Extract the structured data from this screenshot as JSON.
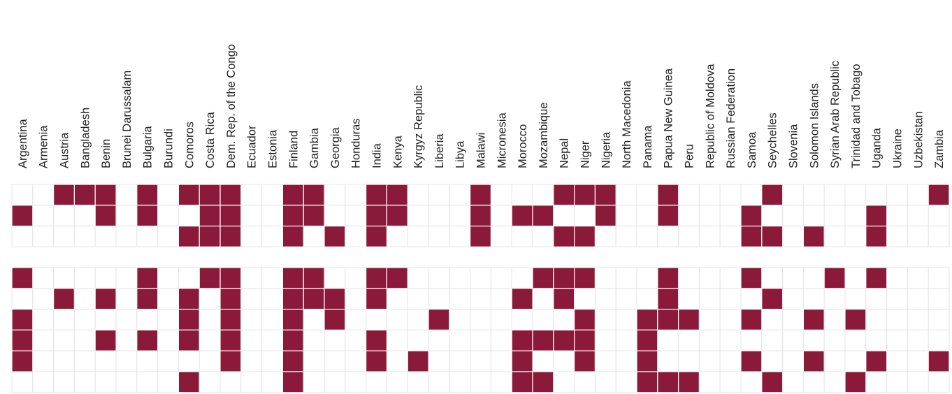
{
  "chart_data": {
    "type": "heatmap",
    "title": "",
    "xlabel": "",
    "ylabel": "",
    "columns": [
      "Argentina",
      "Armenia",
      "Austria",
      "Bangladesh",
      "Benin",
      "Brunei Darussalam",
      "Bulgaria",
      "Burundi",
      "Comoros",
      "Costa Rica",
      "Dem. Rep. of the Congo",
      "Ecuador",
      "Estonia",
      "Finland",
      "Gambia",
      "Georgia",
      "Honduras",
      "India",
      "Kenya",
      "Kyrgyz Republic",
      "Liberia",
      "Libya",
      "Malawi",
      "Micronesia",
      "Morocco",
      "Mozambique",
      "Nepal",
      "Niger",
      "Nigeria",
      "North Macedonia",
      "Panama",
      "Papua New Guinea",
      "Peru",
      "Republic of Moldova",
      "Russian Federation",
      "Samoa",
      "Seychelles",
      "Slovenia",
      "Solomon Islands",
      "Syrian Arab Republic",
      "Trinidad and Tobago",
      "Uganda",
      "Ukraine",
      "Uzbekistan",
      "Zambia"
    ],
    "groups": [
      {
        "rows": [
          [
            0,
            0,
            1,
            1,
            1,
            0,
            1,
            0,
            1,
            1,
            1,
            0,
            0,
            1,
            1,
            0,
            0,
            1,
            1,
            0,
            0,
            0,
            1,
            0,
            0,
            0,
            1,
            1,
            1,
            0,
            0,
            1,
            0,
            0,
            0,
            0,
            1,
            0,
            0,
            0,
            0,
            0,
            0,
            0,
            1
          ],
          [
            1,
            0,
            0,
            0,
            1,
            0,
            1,
            0,
            0,
            1,
            1,
            0,
            0,
            1,
            1,
            0,
            0,
            1,
            1,
            0,
            0,
            0,
            1,
            0,
            1,
            1,
            0,
            0,
            1,
            0,
            0,
            1,
            0,
            0,
            0,
            1,
            0,
            0,
            0,
            0,
            0,
            1,
            0,
            0,
            0
          ],
          [
            0,
            0,
            0,
            0,
            0,
            0,
            0,
            0,
            1,
            1,
            1,
            0,
            0,
            1,
            0,
            1,
            0,
            1,
            0,
            0,
            0,
            0,
            1,
            0,
            0,
            0,
            1,
            1,
            0,
            0,
            0,
            0,
            0,
            0,
            0,
            1,
            1,
            0,
            1,
            0,
            0,
            1,
            0,
            0,
            0
          ]
        ]
      },
      {
        "rows": [
          [
            1,
            0,
            0,
            0,
            0,
            0,
            1,
            0,
            0,
            1,
            1,
            0,
            0,
            1,
            1,
            0,
            0,
            1,
            1,
            0,
            0,
            0,
            0,
            0,
            0,
            1,
            1,
            1,
            0,
            0,
            0,
            1,
            0,
            0,
            0,
            1,
            0,
            0,
            0,
            1,
            0,
            1,
            0,
            0,
            0
          ],
          [
            0,
            0,
            1,
            0,
            1,
            0,
            1,
            0,
            1,
            0,
            1,
            0,
            0,
            1,
            1,
            1,
            0,
            1,
            0,
            0,
            0,
            0,
            0,
            0,
            1,
            0,
            1,
            0,
            0,
            0,
            0,
            1,
            0,
            0,
            0,
            0,
            1,
            0,
            0,
            0,
            0,
            0,
            0,
            0,
            0
          ],
          [
            1,
            0,
            0,
            0,
            0,
            0,
            0,
            0,
            1,
            0,
            1,
            0,
            0,
            1,
            0,
            1,
            0,
            0,
            0,
            0,
            1,
            0,
            0,
            0,
            0,
            0,
            0,
            1,
            0,
            0,
            1,
            1,
            1,
            0,
            0,
            1,
            0,
            0,
            1,
            0,
            1,
            0,
            0,
            0,
            0
          ],
          [
            1,
            0,
            0,
            0,
            1,
            0,
            1,
            0,
            1,
            0,
            1,
            0,
            0,
            1,
            0,
            0,
            0,
            1,
            0,
            0,
            0,
            0,
            0,
            0,
            1,
            1,
            1,
            1,
            0,
            0,
            1,
            0,
            0,
            0,
            0,
            0,
            0,
            0,
            0,
            0,
            0,
            0,
            0,
            0,
            0
          ],
          [
            1,
            0,
            0,
            0,
            0,
            0,
            0,
            0,
            0,
            0,
            1,
            0,
            0,
            1,
            0,
            0,
            0,
            1,
            0,
            1,
            0,
            0,
            0,
            0,
            1,
            0,
            0,
            1,
            0,
            0,
            1,
            0,
            0,
            0,
            0,
            1,
            0,
            0,
            1,
            0,
            0,
            1,
            0,
            0,
            1
          ],
          [
            0,
            0,
            0,
            0,
            0,
            0,
            0,
            0,
            1,
            0,
            0,
            0,
            0,
            1,
            0,
            0,
            0,
            0,
            0,
            0,
            0,
            0,
            0,
            0,
            1,
            1,
            0,
            0,
            0,
            0,
            1,
            1,
            1,
            0,
            0,
            0,
            1,
            0,
            0,
            0,
            1,
            0,
            0,
            0,
            0
          ]
        ]
      }
    ],
    "grid": true,
    "colors": {
      "filled": "#8b1a3a",
      "empty": "#ffffff",
      "gridline": "#e4e4e4"
    }
  }
}
